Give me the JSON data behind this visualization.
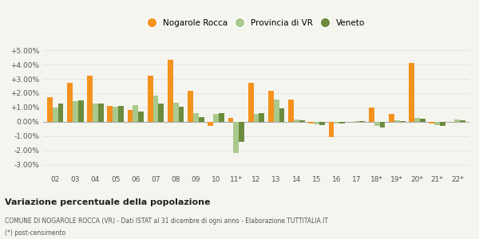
{
  "categories": [
    "02",
    "03",
    "04",
    "05",
    "06",
    "07",
    "08",
    "09",
    "10",
    "11*",
    "12",
    "13",
    "14",
    "15",
    "16",
    "17",
    "18*",
    "19*",
    "20*",
    "21*",
    "22*"
  ],
  "nogarole": [
    1.75,
    2.7,
    3.25,
    1.1,
    0.85,
    3.2,
    4.35,
    2.15,
    -0.25,
    0.3,
    2.72,
    2.18,
    1.58,
    -0.1,
    -1.05,
    0.0,
    1.0,
    0.58,
    4.12,
    -0.1,
    0.0
  ],
  "provincia": [
    1.0,
    1.45,
    1.3,
    1.05,
    1.15,
    1.85,
    1.35,
    0.6,
    0.58,
    -2.15,
    0.58,
    1.55,
    0.18,
    -0.18,
    -0.12,
    0.08,
    -0.3,
    0.12,
    0.28,
    -0.22,
    0.15
  ],
  "veneto": [
    1.3,
    1.48,
    1.27,
    1.1,
    0.72,
    1.27,
    1.08,
    0.33,
    0.6,
    -1.4,
    0.62,
    0.95,
    0.1,
    -0.2,
    -0.1,
    0.05,
    -0.38,
    0.05,
    0.2,
    -0.28,
    0.12
  ],
  "color_nogarole": "#f5921e",
  "color_provincia": "#aac98c",
  "color_veneto": "#6b8c3e",
  "title": "Variazione percentuale della popolazione",
  "subtitle": "COMUNE DI NOGAROLE ROCCA (VR) - Dati ISTAT al 31 dicembre di ogni anno - Elaborazione TUTTITALIA.IT",
  "footnote": "(*) post-censimento",
  "ylim": [
    -3.5,
    5.5
  ],
  "yticks": [
    -3.0,
    -2.0,
    -1.0,
    0.0,
    1.0,
    2.0,
    3.0,
    4.0,
    5.0
  ],
  "ytick_labels": [
    "-3.00%",
    "-2.00%",
    "-1.00%",
    "0.00%",
    "+1.00%",
    "+2.00%",
    "+3.00%",
    "+4.00%",
    "+5.00%"
  ],
  "bg_color": "#f5f5f0",
  "grid_color": "#dddddd"
}
